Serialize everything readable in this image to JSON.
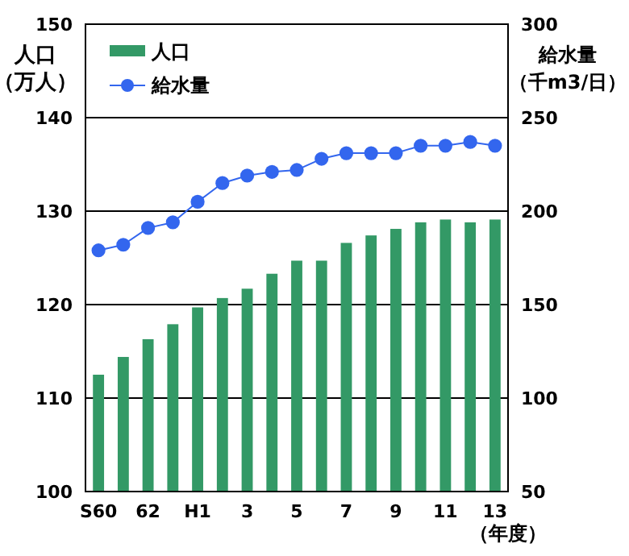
{
  "chart_data": {
    "type": "bar",
    "xlabel": "（年度）",
    "ylabel": "人口（万人）",
    "y2label": "給水量（千m3/日）",
    "categories": [
      "S60",
      null,
      "62",
      null,
      "H1",
      null,
      "3",
      null,
      "5",
      null,
      "7",
      null,
      "9",
      null,
      "11",
      null,
      "13"
    ],
    "series": [
      {
        "name": "人口",
        "color": "#339966",
        "values": [
          112.5,
          114.4,
          116.3,
          117.9,
          119.7,
          120.7,
          121.7,
          123.3,
          124.7,
          124.7,
          126.6,
          127.4,
          128.1,
          128.8,
          129.1,
          128.8,
          129.1
        ]
      },
      {
        "name": "給水量",
        "type": "line",
        "axis": "y2",
        "color": "#3366ee",
        "marker": "circle",
        "values": [
          179,
          182,
          191,
          194,
          205,
          215,
          219,
          221,
          222,
          228,
          231,
          231,
          231,
          235,
          235,
          237,
          235
        ]
      }
    ],
    "ylim": [
      100,
      150
    ],
    "yticks": [
      100,
      110,
      120,
      130,
      140,
      150
    ],
    "y2lim": [
      50,
      300
    ],
    "y2ticks": [
      50,
      100,
      150,
      200,
      250,
      300
    ],
    "grid": "y",
    "legend": "top left"
  }
}
